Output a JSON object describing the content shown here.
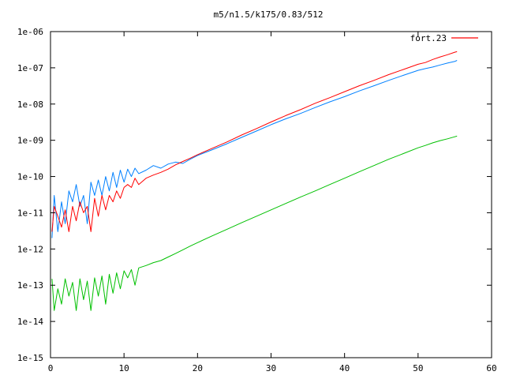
{
  "chart_data": {
    "type": "line",
    "title": "m5/n1.5/k175/0.83/512",
    "xlabel": "",
    "ylabel": "",
    "xlim": [
      0,
      60
    ],
    "ylim": [
      1e-15,
      1e-06
    ],
    "yscale": "log",
    "grid": false,
    "legend_position": "top-right",
    "x_ticks": [
      0,
      10,
      20,
      30,
      40,
      50,
      60
    ],
    "x_tick_labels": [
      "0",
      "10",
      "20",
      "30",
      "40",
      "50",
      "60"
    ],
    "y_ticks": [
      1e-15,
      1e-14,
      1e-13,
      1e-12,
      1e-11,
      1e-10,
      1e-09,
      1e-08,
      1e-07,
      1e-06
    ],
    "y_tick_labels": [
      "1e-15",
      "1e-14",
      "1e-13",
      "1e-12",
      "1e-11",
      "1e-10",
      "1e-09",
      "1e-08",
      "1e-07",
      "1e-06"
    ],
    "series": [
      {
        "name": "fort.23",
        "color": "#ff0000",
        "x": [
          0.2,
          0.5,
          1,
          1.5,
          2,
          2.5,
          3,
          3.5,
          4,
          4.5,
          5,
          5.5,
          6,
          6.5,
          7,
          7.5,
          8,
          8.5,
          9,
          9.5,
          10,
          10.5,
          11,
          11.5,
          12,
          13,
          14,
          15,
          16,
          17,
          18,
          19,
          20,
          22,
          24,
          26,
          28,
          30,
          32,
          34,
          36,
          38,
          40,
          42,
          44,
          46,
          48,
          50,
          51,
          52,
          53,
          54,
          55,
          55.3
        ],
        "y": [
          3e-12,
          1.5e-11,
          8e-12,
          4e-12,
          1.2e-11,
          3e-12,
          1.5e-11,
          6e-12,
          2e-11,
          1e-11,
          1.5e-11,
          3e-12,
          2.5e-11,
          8e-12,
          3e-11,
          1.2e-11,
          3e-11,
          2e-11,
          4e-11,
          2.5e-11,
          5e-11,
          6e-11,
          5e-11,
          9e-11,
          6e-11,
          9e-11,
          1.1e-10,
          1.3e-10,
          1.6e-10,
          2.1e-10,
          2.6e-10,
          3.2e-10,
          4e-10,
          6e-10,
          9e-10,
          1.4e-09,
          2.1e-09,
          3.2e-09,
          4.8e-09,
          7e-09,
          1.05e-08,
          1.5e-08,
          2.2e-08,
          3.2e-08,
          4.5e-08,
          6.5e-08,
          9e-08,
          1.25e-07,
          1.4e-07,
          1.7e-07,
          2e-07,
          2.3e-07,
          2.7e-07,
          2.8e-07
        ]
      },
      {
        "name": "",
        "color": "#0080ff",
        "x": [
          0.2,
          0.5,
          1,
          1.5,
          2,
          2.5,
          3,
          3.5,
          4,
          4.5,
          5,
          5.5,
          6,
          6.5,
          7,
          7.5,
          8,
          8.5,
          9,
          9.5,
          10,
          10.5,
          11,
          11.5,
          12,
          13,
          14,
          15,
          16,
          17,
          18,
          19,
          20,
          22,
          24,
          26,
          28,
          30,
          32,
          34,
          36,
          38,
          40,
          42,
          44,
          46,
          48,
          50,
          51,
          52,
          53,
          54,
          55,
          55.3
        ],
        "y": [
          2e-12,
          3e-11,
          3e-12,
          2e-11,
          5e-12,
          4e-11,
          2e-11,
          6e-11,
          1.5e-11,
          3e-11,
          5e-12,
          7e-11,
          3e-11,
          8e-11,
          3e-11,
          1e-10,
          4e-11,
          1.3e-10,
          5e-11,
          1.5e-10,
          7e-11,
          1.6e-10,
          1e-10,
          1.7e-10,
          1.2e-10,
          1.5e-10,
          2e-10,
          1.7e-10,
          2.2e-10,
          2.5e-10,
          2.3e-10,
          3e-10,
          3.8e-10,
          5.5e-10,
          8e-10,
          1.2e-09,
          1.8e-09,
          2.7e-09,
          3.9e-09,
          5.5e-09,
          8e-09,
          1.15e-08,
          1.6e-08,
          2.3e-08,
          3.2e-08,
          4.5e-08,
          6.2e-08,
          8.5e-08,
          9.5e-08,
          1.05e-07,
          1.2e-07,
          1.35e-07,
          1.5e-07,
          1.6e-07
        ]
      },
      {
        "name": "",
        "color": "#00c000",
        "x": [
          0.2,
          0.5,
          1,
          1.5,
          2,
          2.5,
          3,
          3.5,
          4,
          4.5,
          5,
          5.5,
          6,
          6.5,
          7,
          7.5,
          8,
          8.5,
          9,
          9.5,
          10,
          10.5,
          11,
          11.5,
          12,
          13,
          14,
          15,
          16,
          17,
          18,
          19,
          20,
          22,
          24,
          26,
          28,
          30,
          32,
          34,
          36,
          38,
          40,
          42,
          44,
          46,
          48,
          50,
          51,
          52,
          53,
          54,
          55,
          55.3
        ],
        "y": [
          1.5e-13,
          2e-14,
          8e-14,
          3e-14,
          1.5e-13,
          5e-14,
          1.2e-13,
          2e-14,
          1.5e-13,
          4e-14,
          1.3e-13,
          2e-14,
          1.6e-13,
          5e-14,
          1.8e-13,
          3e-14,
          2e-13,
          6e-14,
          2.2e-13,
          8e-14,
          2.5e-13,
          1.6e-13,
          2.7e-13,
          1e-13,
          3e-13,
          3.5e-13,
          4.2e-13,
          4.8e-13,
          6e-13,
          7.5e-13,
          9.5e-13,
          1.2e-12,
          1.5e-12,
          2.3e-12,
          3.5e-12,
          5.3e-12,
          8e-12,
          1.2e-11,
          1.8e-11,
          2.7e-11,
          4e-11,
          6e-11,
          9e-11,
          1.35e-10,
          2e-10,
          3e-10,
          4.3e-10,
          6.2e-10,
          7.2e-10,
          8.5e-10,
          9.8e-10,
          1.1e-09,
          1.25e-09,
          1.3e-09
        ]
      }
    ]
  }
}
